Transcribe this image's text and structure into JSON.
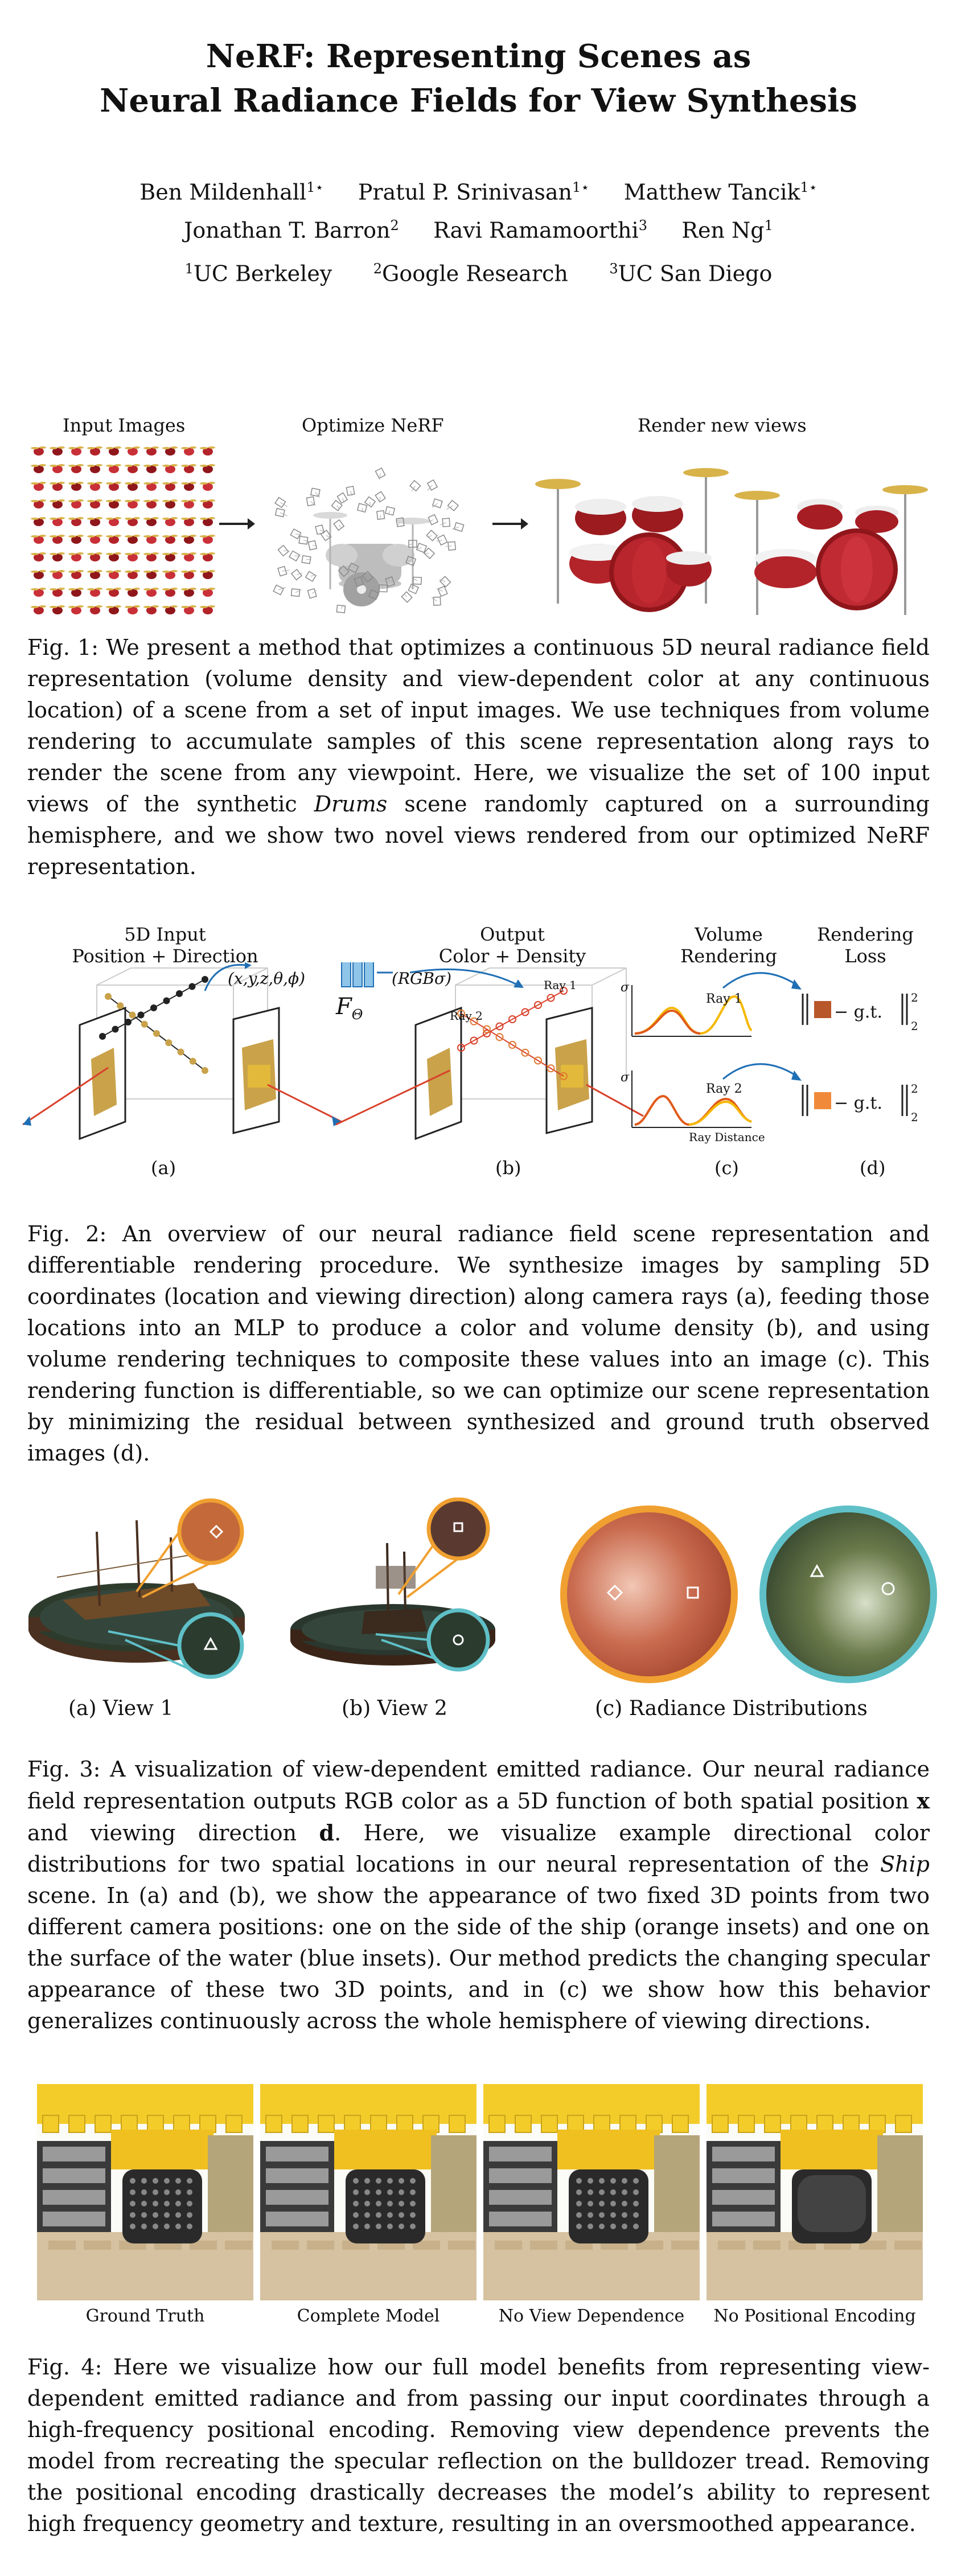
{
  "title": {
    "line1": "NeRF: Representing Scenes as",
    "line2": "Neural Radiance Fields for View Synthesis"
  },
  "authors": {
    "a1": "Ben Mildenhall",
    "a1_sup": "1⋆",
    "a2": "Pratul P. Srinivasan",
    "a2_sup": "1⋆",
    "a3": "Matthew Tancik",
    "a3_sup": "1⋆",
    "a4": "Jonathan T. Barron",
    "a4_sup": "2",
    "a5": "Ravi Ramamoorthi",
    "a5_sup": "3",
    "a6": "Ren Ng",
    "a6_sup": "1"
  },
  "affiliations": {
    "u1_sup": "1",
    "u1": "UC Berkeley",
    "u2_sup": "2",
    "u2": "Google Research",
    "u3_sup": "3",
    "u3": "UC San Diego"
  },
  "fig1": {
    "label_input": "Input Images",
    "label_optimize": "Optimize NeRF",
    "label_render": "Render new views",
    "caption_pre": "Fig. 1: We present a method that optimizes a continuous 5D neural radiance field representation (volume density and view-dependent color at any continuous location) of a scene from a set of input images. We use techniques from volume rendering to accumulate samples of this scene representation along rays to render the scene from any viewpoint. Here, we visualize the set of 100 input views of the synthetic ",
    "caption_em": "Drums",
    "caption_post": " scene randomly captured on a surrounding hemisphere, and we show two novel views rendered from our optimized NeRF representation."
  },
  "fig2": {
    "h_input1": "5D Input",
    "h_input2": "Position + Direction",
    "h_output1": "Output",
    "h_output2": "Color + Density",
    "h_vol1": "Volume",
    "h_vol2": "Rendering",
    "h_loss1": "Rendering",
    "h_loss2": "Loss",
    "coords": "(x,y,z,θ,ϕ)",
    "rgba": "(RGBσ)",
    "f_theta": "F",
    "f_sub": "Θ",
    "ray1": "Ray 1",
    "ray2": "Ray 2",
    "ray_distance": "Ray Distance",
    "sigma": "σ",
    "gt": "− g.t.",
    "sq": "2",
    "sub2": "2",
    "pa": "(a)",
    "pb": "(b)",
    "pc": "(c)",
    "pd": "(d)",
    "caption": "Fig. 2: An overview of our neural radiance field scene representation and differentiable rendering procedure. We synthesize images by sampling 5D coordinates (location and viewing direction) along camera rays (a), feeding those locations into an MLP to produce a color and volume density (b), and using volume rendering techniques to composite these values into an image (c). This rendering function is differentiable, so we can optimize our scene representation by minimizing the residual between synthesized and ground truth observed images (d)."
  },
  "fig3": {
    "label_a": "(a) View 1",
    "label_b": "(b) View 2",
    "label_c": "(c) Radiance Distributions",
    "caption_1": "Fig. 3: A visualization of view-dependent emitted radiance. Our neural radiance field representation outputs RGB color as a 5D function of both spatial position ",
    "caption_x": "x",
    "caption_2": " and viewing direction ",
    "caption_d": "d",
    "caption_3": ". Here, we visualize example directional color distributions for two spatial locations in our neural representation of the ",
    "caption_em": "Ship",
    "caption_4": " scene. In (a) and (b), we show the appearance of two fixed 3D points from two different camera positions: one on the side of the ship (orange insets) and one on the surface of the water (blue insets). Our method predicts the changing specular appearance of these two 3D points, and in (c) we show how this behavior generalizes continuously across the whole hemisphere of viewing directions."
  },
  "fig4": {
    "l1": "Ground Truth",
    "l2": "Complete Model",
    "l3": "No View Dependence",
    "l4": "No Positional Encoding",
    "caption": "Fig. 4: Here we visualize how our full model benefits from representing view-dependent emitted radiance and from passing our input coordinates through a high-frequency positional encoding. Removing view dependence prevents the model from recreating the specular reflection on the bulldozer tread. Removing the positional encoding drastically decreases the model’s ability to represent high frequency geometry and texture, resulting in an oversmoothed appearance."
  },
  "colors": {
    "orange": "#f0a030",
    "teal": "#5fc0c8",
    "blue_arrow": "#1f6fb5",
    "red_ray": "#d9412b",
    "accent_orange": "#e7701f"
  }
}
